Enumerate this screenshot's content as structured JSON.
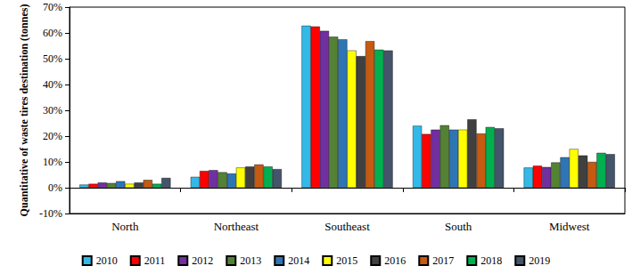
{
  "chart_data": {
    "type": "bar",
    "y_label": "Quantitative of waste tires destination (tonnes)",
    "categories": [
      "North",
      "Northeast",
      "Southeast",
      "South",
      "Midwest"
    ],
    "series": [
      {
        "name": "2010",
        "color": "#33b9e8",
        "values": [
          1.2,
          4.2,
          62.8,
          24.0,
          7.8
        ]
      },
      {
        "name": "2011",
        "color": "#ff0000",
        "values": [
          1.5,
          6.5,
          62.5,
          20.8,
          8.5
        ]
      },
      {
        "name": "2012",
        "color": "#7030a0",
        "values": [
          2.0,
          6.8,
          60.8,
          22.5,
          8.0
        ]
      },
      {
        "name": "2013",
        "color": "#548235",
        "values": [
          1.8,
          6.0,
          58.5,
          24.2,
          9.8
        ]
      },
      {
        "name": "2014",
        "color": "#2e75b6",
        "values": [
          2.5,
          5.5,
          57.5,
          22.5,
          11.8
        ]
      },
      {
        "name": "2015",
        "color": "#ffff00",
        "values": [
          1.5,
          7.8,
          53.2,
          22.5,
          15.0
        ]
      },
      {
        "name": "2016",
        "color": "#404040",
        "values": [
          2.0,
          8.2,
          51.0,
          26.5,
          12.5
        ]
      },
      {
        "name": "2017",
        "color": "#c55a11",
        "values": [
          3.0,
          9.0,
          56.8,
          21.0,
          10.0
        ]
      },
      {
        "name": "2018",
        "color": "#00b050",
        "values": [
          1.5,
          8.2,
          53.5,
          23.5,
          13.5
        ]
      },
      {
        "name": "2019",
        "color": "#44546a",
        "values": [
          3.8,
          7.2,
          53.2,
          23.0,
          13.0
        ]
      }
    ],
    "ylim": [
      -10,
      70
    ],
    "yticks": [
      {
        "value": -10,
        "label": "-10%"
      },
      {
        "value": 0,
        "label": "0%"
      },
      {
        "value": 10,
        "label": "10%"
      },
      {
        "value": 20,
        "label": "20%"
      },
      {
        "value": 30,
        "label": "30%"
      },
      {
        "value": 40,
        "label": "40%"
      },
      {
        "value": 50,
        "label": "50%"
      },
      {
        "value": 60,
        "label": "60%"
      },
      {
        "value": 70,
        "label": "70%"
      }
    ],
    "grid": false,
    "legend": "bottom"
  }
}
